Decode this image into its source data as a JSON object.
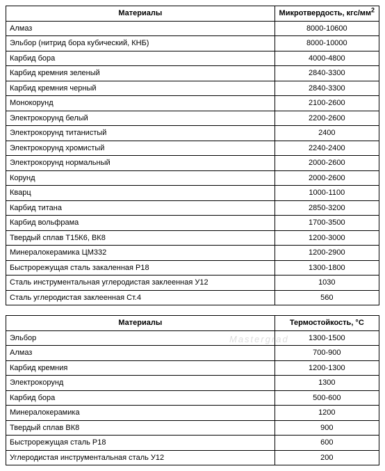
{
  "table1": {
    "columns": [
      {
        "title": "Материалы"
      },
      {
        "title_html": "Микротвердость, кгс/мм<sup>2</sup>"
      }
    ],
    "rows": [
      [
        "Алмаз",
        "8000-10600"
      ],
      [
        "Эльбор (нитрид бора кубический, КНБ)",
        "8000-10000"
      ],
      [
        "Карбид бора",
        "4000-4800"
      ],
      [
        "Карбид кремния зеленый",
        "2840-3300"
      ],
      [
        "Карбид кремния черный",
        "2840-3300"
      ],
      [
        "Монокорунд",
        "2100-2600"
      ],
      [
        "Электрокорунд белый",
        "2200-2600"
      ],
      [
        "Электрокорунд титанистый",
        "2400"
      ],
      [
        "Электрокорунд хромистый",
        "2240-2400"
      ],
      [
        "Электрокорунд нормальный",
        "2000-2600"
      ],
      [
        "Корунд",
        "2000-2600"
      ],
      [
        "Кварц",
        "1000-1100"
      ],
      [
        "Карбид титана",
        "2850-3200"
      ],
      [
        "Карбид вольфрама",
        "1700-3500"
      ],
      [
        "Твердый сплав Т15К6, ВК8",
        "1200-3000"
      ],
      [
        "Минералокерамика ЦМ332",
        "1200-2900"
      ],
      [
        "Быстрорежущая сталь закаленная Р18",
        "1300-1800"
      ],
      [
        "Сталь инструментальная углеродистая заклеенная У12",
        "1030"
      ],
      [
        "Сталь углеродистая заклеенная Ст.4",
        "560"
      ]
    ],
    "border_color": "#000000",
    "header_fontweight": "bold",
    "fontsize": 11
  },
  "table2": {
    "columns": [
      {
        "title": "Материалы"
      },
      {
        "title": "Термостойкость, °С"
      }
    ],
    "rows": [
      [
        "Эльбор",
        "1300-1500"
      ],
      [
        "Алмаз",
        "700-900"
      ],
      [
        "Карбид кремния",
        "1200-1300"
      ],
      [
        "Электрокорунд",
        "1300"
      ],
      [
        "Карбид бора",
        "500-600"
      ],
      [
        "Минералокерамика",
        "1200"
      ],
      [
        "Твердый сплав ВК8",
        "900"
      ],
      [
        "Быстрорежущая сталь Р18",
        "600"
      ],
      [
        "Углеродистая инструментальная сталь У12",
        "200"
      ]
    ],
    "border_color": "#000000",
    "header_fontweight": "bold",
    "fontsize": 11
  },
  "watermark": "Mastergrad"
}
